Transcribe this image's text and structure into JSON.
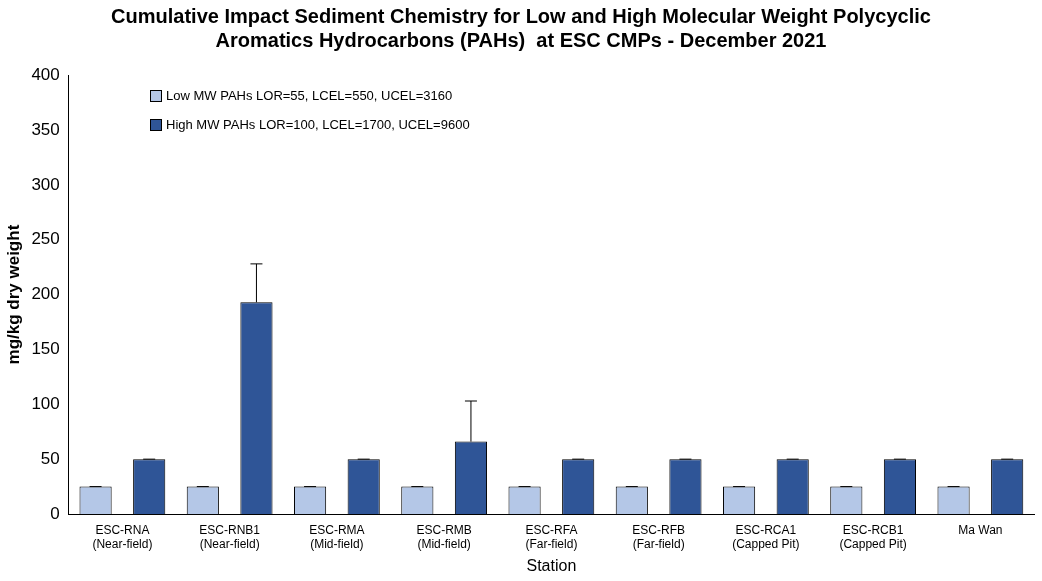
{
  "chart_data": {
    "type": "bar",
    "title": "Cumulative Impact Sediment Chemistry for Low and High Molecular Weight Polycyclic Aromatics Hydrocarbons (PAHs)  at ESC CMPs - December 2021",
    "xlabel": "Station",
    "ylabel": "mg/kg dry weight",
    "categories": [
      "ESC-RNA (Near-field)",
      "ESC-RNB1 (Near-field)",
      "ESC-RMA (Mid-field)",
      "ESC-RMB (Mid-field)",
      "ESC-RFA (Far-field)",
      "ESC-RFB (Far-field)",
      "ESC-RCA1 (Capped Pit)",
      "ESC-RCB1 (Capped Pit)",
      "Ma Wan"
    ],
    "series": [
      {
        "name": "Low MW PAHs LOR=55, LCEL=550, UCEL=3160",
        "color": "#b4c7e7",
        "values": [
          25,
          25,
          25,
          25,
          25,
          25,
          25,
          25,
          25
        ],
        "errors": [
          0,
          0,
          0,
          0,
          0,
          0,
          0,
          0,
          0
        ]
      },
      {
        "name": "High MW PAHs LOR=100, LCEL=1700, UCEL=9600",
        "color": "#2f5597",
        "values": [
          50,
          193,
          50,
          66,
          50,
          50,
          50,
          50,
          50
        ],
        "errors": [
          0,
          35,
          0,
          37,
          0,
          0,
          0,
          0,
          0
        ]
      }
    ],
    "ylim": [
      0,
      400
    ],
    "yticks": [
      0,
      50,
      100,
      150,
      200,
      250,
      300,
      350,
      400
    ],
    "grid": false,
    "legend": "top left"
  }
}
